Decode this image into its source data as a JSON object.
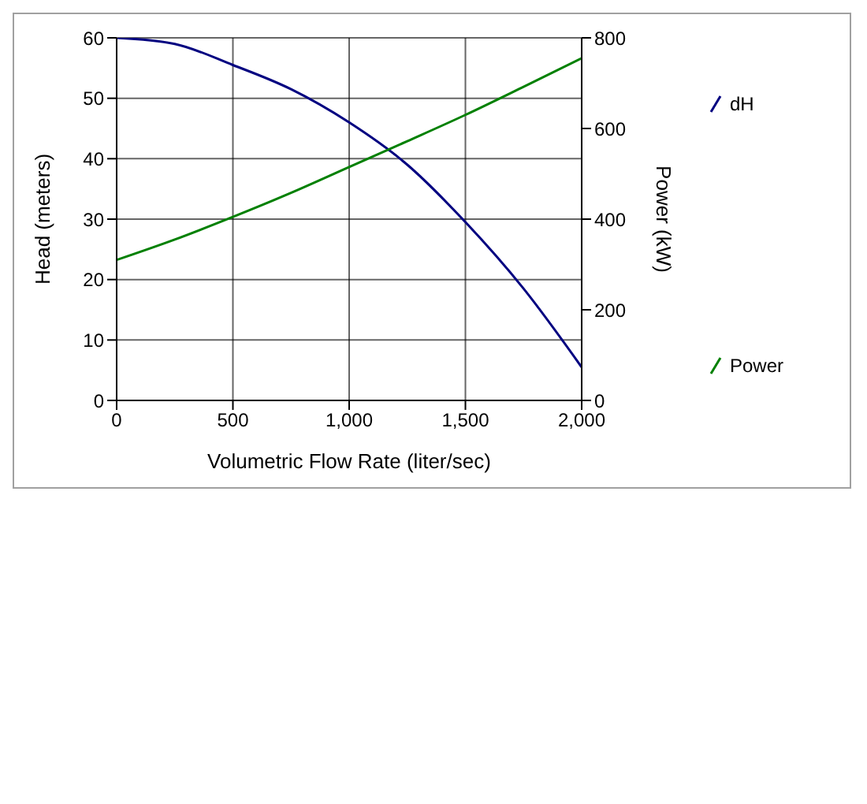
{
  "chart_data": {
    "type": "line",
    "xlabel": "Volumetric Flow Rate (liter/sec)",
    "ylabel": "Head (meters)",
    "y2label": "Power (kW)",
    "x": [
      0,
      250,
      500,
      750,
      1000,
      1250,
      1500,
      1750,
      2000
    ],
    "series": [
      {
        "name": "dH",
        "color": "#000080",
        "values": [
          60,
          59,
          55.5,
          51.5,
          46,
          39,
          29.5,
          18.5,
          5.5
        ]
      },
      {
        "name": "Power",
        "color": "#008000",
        "axis": "y2",
        "values": [
          310,
          355,
          405,
          458,
          515,
          572,
          630,
          692,
          755
        ]
      }
    ],
    "xlim": [
      0,
      2000
    ],
    "xticks": [
      0,
      500,
      {
        "value": 1000,
        "label": "1,000"
      },
      {
        "value": 1500,
        "label": "1,500"
      },
      {
        "value": 2000,
        "label": "2,000"
      }
    ],
    "ylim": [
      0,
      60
    ],
    "yticks": [
      0,
      10,
      20,
      30,
      40,
      50,
      60
    ],
    "y2lim": [
      0,
      800
    ],
    "y2ticks": [
      0,
      200,
      400,
      600,
      800
    ],
    "grid": true,
    "legend": "right",
    "marker": "none",
    "line_style": "solid"
  }
}
